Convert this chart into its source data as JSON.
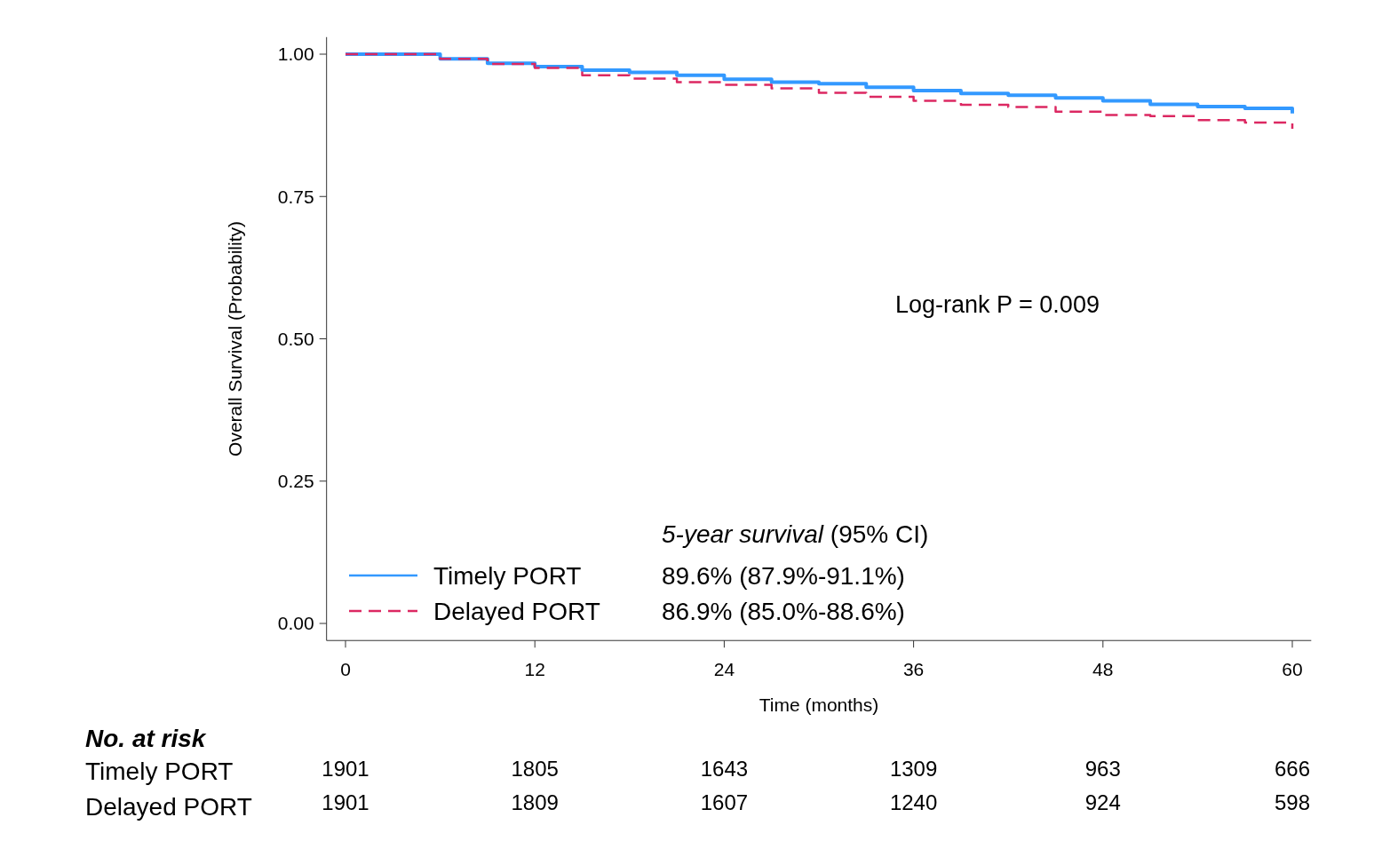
{
  "chart_data": {
    "type": "step",
    "xlabel": "Time (months)",
    "ylabel": "Overall Survival (Probability)",
    "x": [
      0,
      3,
      6,
      9,
      12,
      15,
      18,
      21,
      24,
      27,
      30,
      33,
      36,
      39,
      42,
      45,
      48,
      51,
      54,
      57,
      60
    ],
    "series": [
      {
        "name": "Timely PORT",
        "color": "#3399ff",
        "line_style": "solid",
        "values": [
          1.0,
          1.0,
          0.992,
          0.984,
          0.978,
          0.972,
          0.968,
          0.963,
          0.956,
          0.951,
          0.948,
          0.942,
          0.936,
          0.931,
          0.928,
          0.923,
          0.918,
          0.912,
          0.908,
          0.905,
          0.896
        ]
      },
      {
        "name": "Delayed PORT",
        "color": "#dc2862",
        "line_style": "dashed",
        "values": [
          1.0,
          1.0,
          0.992,
          0.983,
          0.976,
          0.963,
          0.957,
          0.951,
          0.946,
          0.94,
          0.932,
          0.925,
          0.918,
          0.911,
          0.907,
          0.899,
          0.893,
          0.891,
          0.884,
          0.88,
          0.869
        ]
      }
    ],
    "xlim": [
      -1.2,
      61.2
    ],
    "xticks": [
      0,
      12,
      24,
      36,
      48,
      60
    ],
    "ylim": [
      -0.03,
      1.03
    ],
    "yticks": [
      {
        "value": 0,
        "label": "0.00"
      },
      {
        "value": 0.25,
        "label": "0.25"
      },
      {
        "value": 0.5,
        "label": "0.50"
      },
      {
        "value": 0.75,
        "label": "0.75"
      },
      {
        "value": 1,
        "label": "1.00"
      }
    ],
    "grid": false,
    "legend": "bottom left",
    "annotations": [
      "Log-rank P = 0.009",
      "5-year survival (95% CI)",
      "89.6% (87.9%-91.1%)",
      "86.9% (85.0%-88.6%)",
      "No. at risk",
      "1901",
      "1805",
      "1643",
      "1309",
      "963",
      "666",
      "1901",
      "1809",
      "1607",
      "1240",
      "924",
      "598"
    ]
  }
}
